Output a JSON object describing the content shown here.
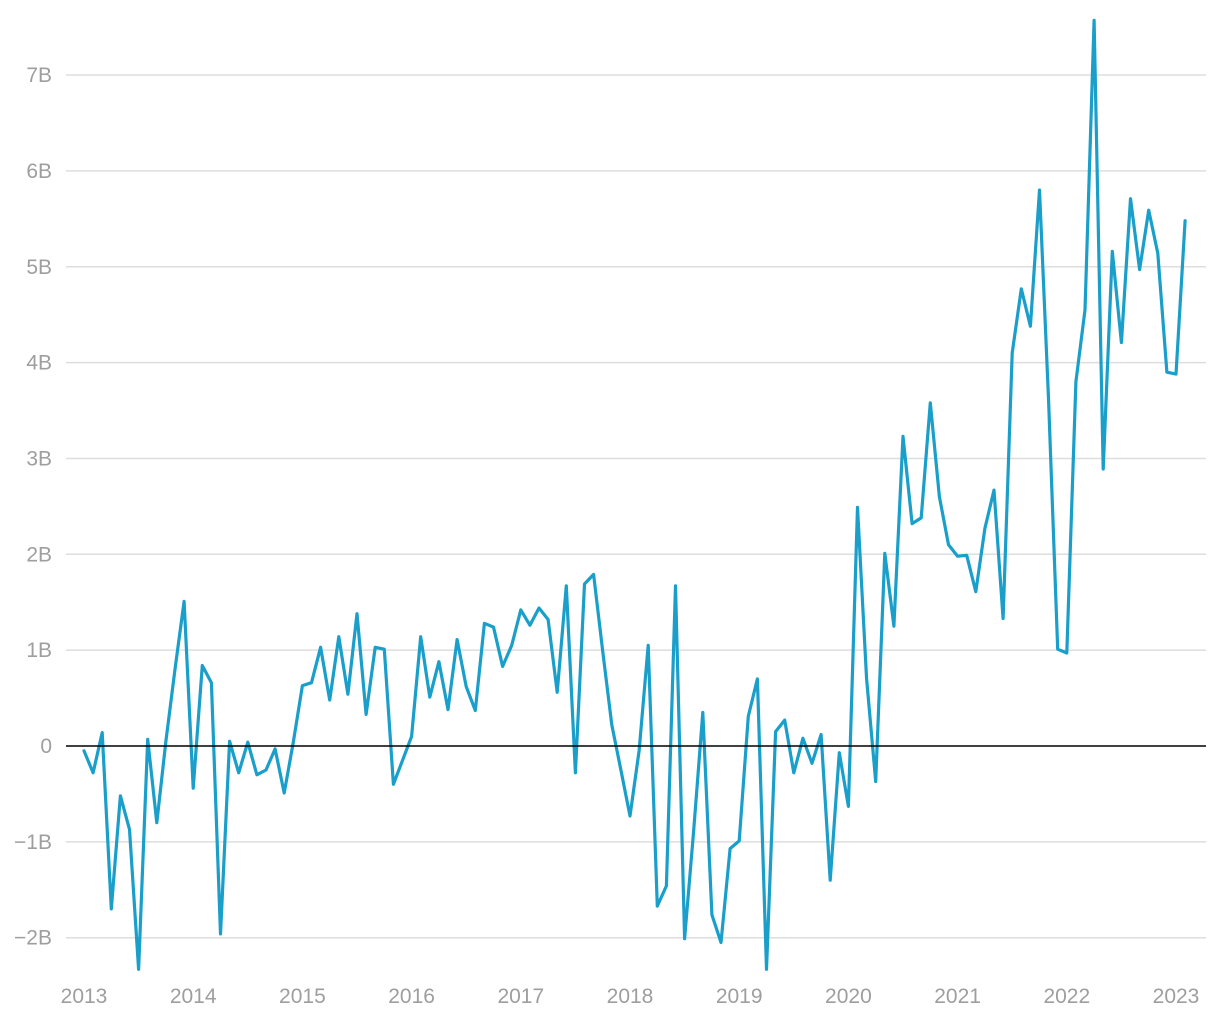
{
  "chart_data": {
    "type": "line",
    "title": "",
    "xlabel": "",
    "ylabel": "",
    "ylim": [
      -2.4,
      7.6
    ],
    "xlim": [
      2012.8,
      2023.3
    ],
    "grid": true,
    "legend": "none",
    "colors": {
      "line": "#1a9fcb",
      "grid": "#dedede",
      "zero_line": "#000000",
      "tick_text": "#9e9e9e"
    },
    "y_ticks": [
      {
        "value": -2,
        "label": "−2B"
      },
      {
        "value": -1,
        "label": "−1B"
      },
      {
        "value": 0,
        "label": "0"
      },
      {
        "value": 1,
        "label": "1B"
      },
      {
        "value": 2,
        "label": "2B"
      },
      {
        "value": 3,
        "label": "3B"
      },
      {
        "value": 4,
        "label": "4B"
      },
      {
        "value": 5,
        "label": "5B"
      },
      {
        "value": 6,
        "label": "6B"
      },
      {
        "value": 7,
        "label": "7B"
      }
    ],
    "x_ticks": [
      {
        "value": 2013,
        "label": "2013"
      },
      {
        "value": 2014,
        "label": "2014"
      },
      {
        "value": 2015,
        "label": "2015"
      },
      {
        "value": 2016,
        "label": "2016"
      },
      {
        "value": 2017,
        "label": "2017"
      },
      {
        "value": 2018,
        "label": "2018"
      },
      {
        "value": 2019,
        "label": "2019"
      },
      {
        "value": 2020,
        "label": "2020"
      },
      {
        "value": 2021,
        "label": "2021"
      },
      {
        "value": 2022,
        "label": "2022"
      },
      {
        "value": 2023,
        "label": "2023"
      }
    ],
    "series": [
      {
        "x": [
          "2013-01",
          "2013-02",
          "2013-03",
          "2013-04",
          "2013-05",
          "2013-06",
          "2013-07",
          "2013-08",
          "2013-09",
          "2013-10",
          "2013-11",
          "2013-12",
          "2014-01",
          "2014-02",
          "2014-03",
          "2014-04",
          "2014-05",
          "2014-06",
          "2014-07",
          "2014-08",
          "2014-09",
          "2014-10",
          "2014-11",
          "2014-12",
          "2015-01",
          "2015-02",
          "2015-03",
          "2015-04",
          "2015-05",
          "2015-06",
          "2015-07",
          "2015-08",
          "2015-09",
          "2015-10",
          "2015-11",
          "2015-12",
          "2016-01",
          "2016-02",
          "2016-03",
          "2016-04",
          "2016-05",
          "2016-06",
          "2016-07",
          "2016-08",
          "2016-09",
          "2016-10",
          "2016-11",
          "2016-12",
          "2017-01",
          "2017-02",
          "2017-03",
          "2017-04",
          "2017-05",
          "2017-06",
          "2017-07",
          "2017-08",
          "2017-09",
          "2017-10",
          "2017-11",
          "2017-12",
          "2018-01",
          "2018-02",
          "2018-03",
          "2018-04",
          "2018-05",
          "2018-06",
          "2018-07",
          "2018-08",
          "2018-09",
          "2018-10",
          "2018-11",
          "2018-12",
          "2019-01",
          "2019-02",
          "2019-03",
          "2019-04",
          "2019-05",
          "2019-06",
          "2019-07",
          "2019-08",
          "2019-09",
          "2019-10",
          "2019-11",
          "2019-12",
          "2020-01",
          "2020-02",
          "2020-03",
          "2020-04",
          "2020-05",
          "2020-06",
          "2020-07",
          "2020-08",
          "2020-09",
          "2020-10",
          "2020-11",
          "2020-12",
          "2021-01",
          "2021-02",
          "2021-03",
          "2021-04",
          "2021-05",
          "2021-06",
          "2021-07",
          "2021-08",
          "2021-09",
          "2021-10",
          "2021-11",
          "2021-12",
          "2022-01",
          "2022-02",
          "2022-03",
          "2022-04",
          "2022-05",
          "2022-06",
          "2022-07",
          "2022-08",
          "2022-09",
          "2022-10",
          "2022-11",
          "2022-12",
          "2023-01",
          "2023-02"
        ],
        "y": [
          -0.05,
          -0.28,
          0.14,
          -1.7,
          -0.52,
          -0.87,
          -2.33,
          0.07,
          -0.8,
          0.05,
          0.8,
          1.51,
          -0.44,
          0.84,
          0.66,
          -1.96,
          0.05,
          -0.28,
          0.04,
          -0.3,
          -0.25,
          -0.03,
          -0.49,
          0.04,
          0.63,
          0.66,
          1.03,
          0.48,
          1.14,
          0.54,
          1.38,
          0.33,
          1.03,
          1.01,
          -0.4,
          -0.15,
          0.1,
          1.14,
          0.51,
          0.88,
          0.38,
          1.11,
          0.62,
          0.37,
          1.28,
          1.24,
          0.83,
          1.05,
          1.42,
          1.26,
          1.44,
          1.32,
          0.56,
          1.67,
          -0.28,
          1.69,
          1.79,
          0.99,
          0.22,
          -0.25,
          -0.73,
          -0.05,
          1.05,
          -1.67,
          -1.46,
          1.67,
          -2.01,
          -0.88,
          0.35,
          -1.76,
          -2.05,
          -1.07,
          -0.99,
          0.31,
          0.7,
          -2.33,
          0.15,
          0.27,
          -0.28,
          0.08,
          -0.18,
          0.12,
          -1.4,
          -0.07,
          -0.63,
          2.49,
          0.7,
          -0.37,
          2.01,
          1.25,
          3.23,
          2.32,
          2.38,
          3.58,
          2.6,
          2.1,
          1.98,
          1.99,
          1.61,
          2.27,
          2.67,
          1.33,
          4.1,
          4.77,
          4.38,
          5.8,
          3.6,
          1.01,
          0.97,
          3.8,
          4.55,
          7.57,
          2.89,
          5.16,
          4.21,
          5.71,
          4.97,
          5.59,
          5.14,
          3.9,
          3.88,
          5.48
        ]
      }
    ]
  }
}
